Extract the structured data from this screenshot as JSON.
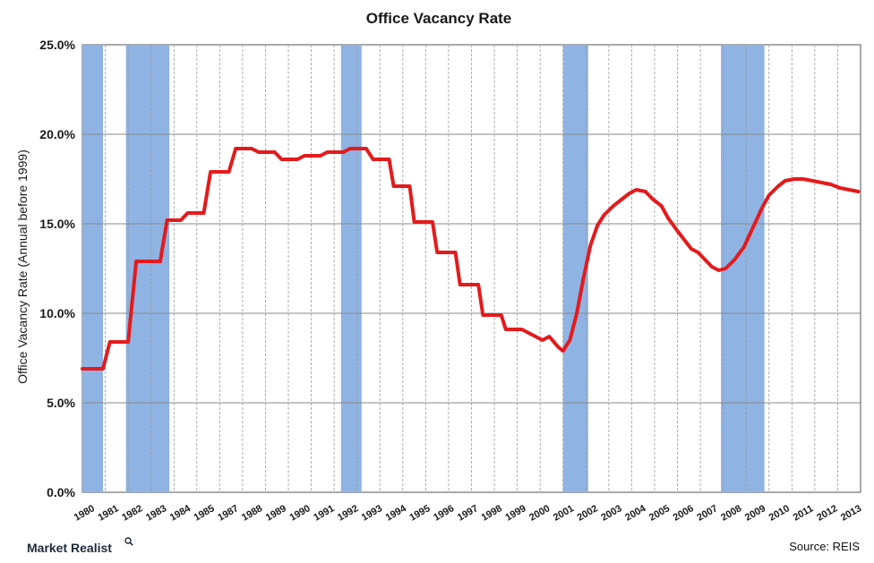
{
  "chart_data": {
    "type": "line",
    "title": "Office Vacancy Rate",
    "ylabel": "Office Vacancy Rate (Annual before 1999)",
    "xlabel": "",
    "ylim": [
      0,
      25
    ],
    "xlim": [
      1980,
      2014
    ],
    "yticks": [
      "0.0%",
      "5.0%",
      "10.0%",
      "15.0%",
      "20.0%",
      "25.0%"
    ],
    "xticks": [
      "1980",
      "1981",
      "1982",
      "1983",
      "1984",
      "1985",
      "1987",
      "1988",
      "1989",
      "1990",
      "1991",
      "1992",
      "1993",
      "1994",
      "1995",
      "1996",
      "1997",
      "1998",
      "1999",
      "2000",
      "2001",
      "2002",
      "2003",
      "2004",
      "2005",
      "2006",
      "2007",
      "2008",
      "2009",
      "2010",
      "2011",
      "2012",
      "2013"
    ],
    "grid": true,
    "legend": "none",
    "colors": {
      "line": "#e41a1c",
      "recession": "#8fb3e3",
      "grid": "#9a9a9a"
    },
    "recession_bands": [
      [
        1980.0,
        1980.9
      ],
      [
        1981.9,
        1983.8
      ],
      [
        1991.3,
        1992.2
      ],
      [
        2001.0,
        2002.1
      ],
      [
        2007.9,
        2009.8
      ]
    ],
    "series": [
      {
        "points": [
          [
            1980.0,
            6.9
          ],
          [
            1980.9,
            6.9
          ],
          [
            1981.2,
            8.4
          ],
          [
            1982.0,
            8.4
          ],
          [
            1982.35,
            12.9
          ],
          [
            1983.4,
            12.9
          ],
          [
            1983.7,
            15.2
          ],
          [
            1984.3,
            15.2
          ],
          [
            1984.6,
            15.6
          ],
          [
            1985.3,
            15.6
          ],
          [
            1985.6,
            17.9
          ],
          [
            1986.4,
            17.9
          ],
          [
            1986.7,
            19.2
          ],
          [
            1987.4,
            19.2
          ],
          [
            1987.7,
            19.0
          ],
          [
            1988.4,
            19.0
          ],
          [
            1988.7,
            18.6
          ],
          [
            1989.4,
            18.6
          ],
          [
            1989.7,
            18.8
          ],
          [
            1990.4,
            18.8
          ],
          [
            1990.7,
            19.0
          ],
          [
            1991.4,
            19.0
          ],
          [
            1991.7,
            19.2
          ],
          [
            1992.4,
            19.2
          ],
          [
            1992.7,
            18.6
          ],
          [
            1993.4,
            18.6
          ],
          [
            1993.6,
            17.1
          ],
          [
            1994.3,
            17.1
          ],
          [
            1994.5,
            15.1
          ],
          [
            1995.3,
            15.1
          ],
          [
            1995.5,
            13.4
          ],
          [
            1996.3,
            13.4
          ],
          [
            1996.5,
            11.6
          ],
          [
            1997.3,
            11.6
          ],
          [
            1997.5,
            9.9
          ],
          [
            1998.3,
            9.9
          ],
          [
            1998.5,
            9.1
          ],
          [
            1999.2,
            9.1
          ],
          [
            1999.5,
            8.9
          ],
          [
            1999.8,
            8.7
          ],
          [
            2000.1,
            8.5
          ],
          [
            2000.4,
            8.7
          ],
          [
            2000.8,
            8.1
          ],
          [
            2001.0,
            7.9
          ],
          [
            2001.3,
            8.5
          ],
          [
            2001.6,
            10.0
          ],
          [
            2001.9,
            12.0
          ],
          [
            2002.2,
            13.8
          ],
          [
            2002.5,
            14.9
          ],
          [
            2002.8,
            15.5
          ],
          [
            2003.2,
            16.0
          ],
          [
            2003.6,
            16.4
          ],
          [
            2003.9,
            16.7
          ],
          [
            2004.2,
            16.9
          ],
          [
            2004.6,
            16.8
          ],
          [
            2004.9,
            16.4
          ],
          [
            2005.3,
            16.0
          ],
          [
            2005.6,
            15.3
          ],
          [
            2006.0,
            14.6
          ],
          [
            2006.3,
            14.1
          ],
          [
            2006.6,
            13.6
          ],
          [
            2006.9,
            13.4
          ],
          [
            2007.2,
            13.0
          ],
          [
            2007.5,
            12.6
          ],
          [
            2007.8,
            12.4
          ],
          [
            2008.1,
            12.5
          ],
          [
            2008.5,
            13.0
          ],
          [
            2008.9,
            13.7
          ],
          [
            2009.3,
            14.8
          ],
          [
            2009.7,
            15.9
          ],
          [
            2010.0,
            16.6
          ],
          [
            2010.4,
            17.1
          ],
          [
            2010.7,
            17.4
          ],
          [
            2011.1,
            17.5
          ],
          [
            2011.5,
            17.5
          ],
          [
            2011.9,
            17.4
          ],
          [
            2012.3,
            17.3
          ],
          [
            2012.7,
            17.2
          ],
          [
            2013.1,
            17.0
          ],
          [
            2013.5,
            16.9
          ],
          [
            2013.9,
            16.8
          ]
        ]
      }
    ]
  },
  "footer": {
    "brand": "Market Realist",
    "source": "Source: REIS"
  }
}
